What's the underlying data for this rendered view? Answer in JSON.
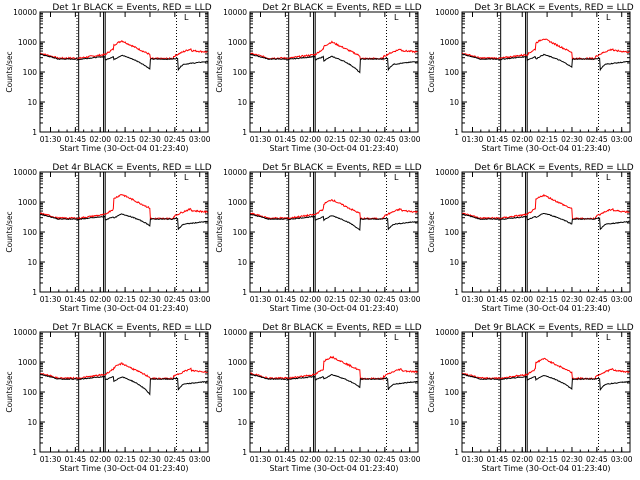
{
  "colors": {
    "events": "#000000",
    "lld": "#ff0000",
    "frame": "#000000"
  },
  "chart_data": {
    "type": "line",
    "ylabel": "Counts/sec",
    "xlabel": "Start Time (30-Oct-04 01:23:40)",
    "y_scale": "log",
    "ylim": [
      1,
      10000
    ],
    "y_ticks": [
      1,
      10,
      100,
      1000,
      10000
    ],
    "y_tick_labels": [
      "1",
      "10",
      "100",
      "1000",
      "10000"
    ],
    "x_tick_labels": [
      "01:30",
      "01:45",
      "02:00",
      "02:15",
      "02:30",
      "02:45",
      "03:00"
    ],
    "xlim_label": "01:23:40 - 03:05",
    "legend_mark": "L",
    "panels": [
      {
        "title": "Det 1r BLACK = Events, RED = LLD",
        "dotted": [
          "01:46",
          "02:46"
        ],
        "solid": [
          "01:47",
          "02:02",
          "02:03"
        ],
        "lld_peak": 1100,
        "ev_peak": 360
      },
      {
        "title": "Det 2r BLACK = Events, RED = LLD",
        "dotted": [
          "01:46",
          "02:46"
        ],
        "solid": [
          "01:47",
          "02:02",
          "02:03"
        ],
        "lld_peak": 1000,
        "ev_peak": 330
      },
      {
        "title": "Det 3r BLACK = Events, RED = LLD",
        "dotted": [
          "01:46",
          "02:46"
        ],
        "solid": [
          "01:47",
          "02:02",
          "02:03"
        ],
        "lld_peak": 1300,
        "ev_peak": 380
      },
      {
        "title": "Det 4r BLACK = Events, RED = LLD",
        "dotted": [
          "01:46",
          "02:46"
        ],
        "solid": [
          "01:47",
          "02:02",
          "02:03"
        ],
        "lld_peak": 1800,
        "ev_peak": 400
      },
      {
        "title": "Det 5r BLACK = Events, RED = LLD",
        "dotted": [
          "01:46",
          "02:46"
        ],
        "solid": [
          "01:47",
          "02:02",
          "02:03"
        ],
        "lld_peak": 1200,
        "ev_peak": 350
      },
      {
        "title": "Det 6r BLACK = Events, RED = LLD",
        "dotted": [
          "01:46",
          "02:46"
        ],
        "solid": [
          "01:47",
          "02:02",
          "02:03"
        ],
        "lld_peak": 1700,
        "ev_peak": 420
      },
      {
        "title": "Det 7r BLACK = Events, RED = LLD",
        "dotted": [
          "01:46",
          "02:46"
        ],
        "solid": [
          "01:47",
          "02:02",
          "02:03"
        ],
        "lld_peak": 900,
        "ev_peak": 320
      },
      {
        "title": "Det 8r BLACK = Events, RED = LLD",
        "dotted": [
          "01:46",
          "02:46"
        ],
        "solid": [
          "01:47",
          "02:02",
          "02:03"
        ],
        "lld_peak": 1500,
        "ev_peak": 380
      },
      {
        "title": "Det 9r BLACK = Events, RED = LLD",
        "dotted": [
          "01:46",
          "02:46"
        ],
        "solid": [
          "01:47",
          "02:02",
          "02:03"
        ],
        "lld_peak": 1300,
        "ev_peak": 360
      }
    ]
  }
}
